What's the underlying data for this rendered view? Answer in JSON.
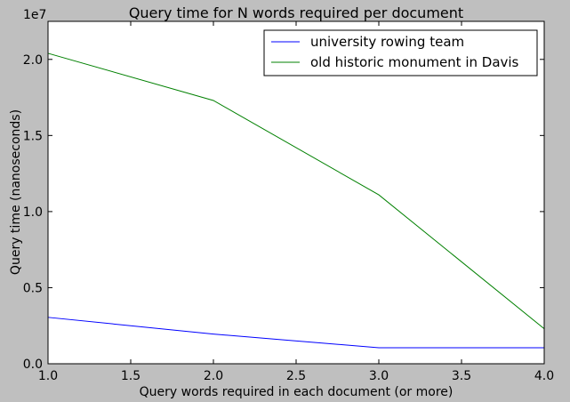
{
  "chart_data": {
    "type": "line",
    "title": "Query time for N words required per document",
    "xlabel": "Query words required in each document (or more)",
    "ylabel": "Query time (nanoseconds)",
    "y_multiplier_label": "1e7",
    "xlim": [
      1.0,
      4.0
    ],
    "ylim": [
      0,
      22500000
    ],
    "x_ticks": [
      1.0,
      1.5,
      2.0,
      2.5,
      3.0,
      3.5,
      4.0
    ],
    "x_tick_labels": [
      "1.0",
      "1.5",
      "2.0",
      "2.5",
      "3.0",
      "3.5",
      "4.0"
    ],
    "y_ticks": [
      0,
      5000000,
      10000000,
      15000000,
      20000000
    ],
    "y_tick_labels": [
      "0.0",
      "0.5",
      "1.0",
      "1.5",
      "2.0"
    ],
    "x": [
      1.0,
      2.0,
      3.0,
      4.0
    ],
    "series": [
      {
        "name": "university rowing team",
        "color": "#0000ff",
        "values": [
          3050000,
          1950000,
          1050000,
          1050000
        ]
      },
      {
        "name": "old historic monument in Davis",
        "color": "#008000",
        "values": [
          20400000,
          17300000,
          11100000,
          2300000
        ]
      }
    ],
    "grid": false,
    "legend_position": "top-right"
  }
}
